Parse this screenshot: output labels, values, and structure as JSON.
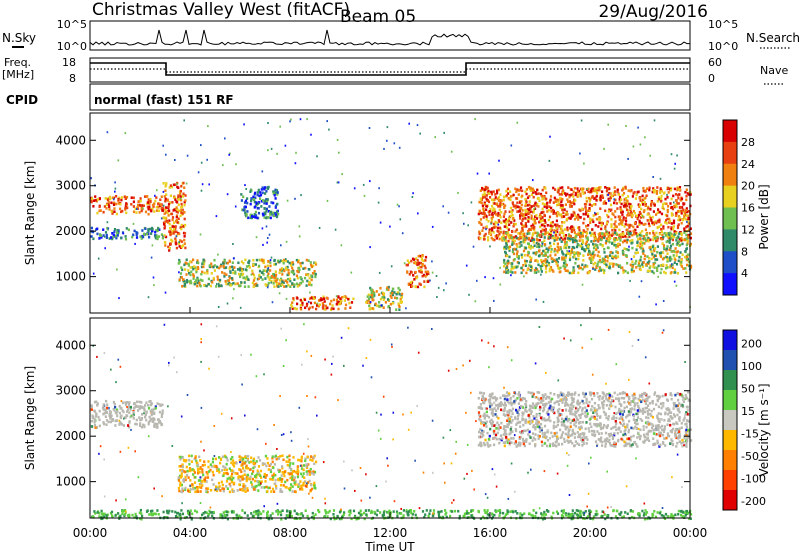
{
  "header": {
    "station": "Christmas Valley West (fitACF)",
    "beam": "Beam 05",
    "date": "29/Aug/2016"
  },
  "top_panels": {
    "nsky_label": "N.Sky",
    "nsky_ticks": [
      "10^5",
      "10^0"
    ],
    "nsearch_label": "N.Search",
    "freq_label": "Freq.",
    "freq_unit": "[MHz]",
    "freq_ticks": [
      "18",
      "8"
    ],
    "nave_label": "Nave",
    "nave_ticks": [
      "60",
      "0"
    ],
    "cpid_label": "CPID",
    "cpid_value": "normal (fast) 151 RF"
  },
  "colors": {
    "power": [
      "#1010ff",
      "#1f4fc8",
      "#2f8a6a",
      "#6fbf50",
      "#e8d020",
      "#f08010",
      "#e84010",
      "#d80000"
    ],
    "velocity": [
      "#e00000",
      "#ff4000",
      "#ff8000",
      "#ffb800",
      "#c8c8c0",
      "#60d040",
      "#309050",
      "#2050b0",
      "#1010e0"
    ],
    "ground": "#b8b8b0"
  },
  "chart_data": [
    {
      "type": "heatmap",
      "name": "power",
      "ylabel": "Slant Range [km]",
      "xlabel": "",
      "yticks": [
        "1000",
        "2000",
        "3000",
        "4000"
      ],
      "ylim": [
        200,
        4600
      ],
      "xlim_hours": [
        0,
        24
      ],
      "colorbar_title": "Power [dB]",
      "colorbar_ticks": [
        "4",
        "8",
        "12",
        "16",
        "20",
        "24",
        "28"
      ],
      "features": [
        {
          "t": [
            0,
            2.9
          ],
          "r": [
            2400,
            2800
          ],
          "level": "high"
        },
        {
          "t": [
            0,
            2.9
          ],
          "r": [
            1850,
            2100
          ],
          "level": "low"
        },
        {
          "t": [
            2.9,
            3.8
          ],
          "r": [
            1600,
            3100
          ],
          "level": "high"
        },
        {
          "t": [
            3.5,
            9
          ],
          "r": [
            800,
            1400
          ],
          "level": "mid"
        },
        {
          "t": [
            6,
            7.5
          ],
          "r": [
            2300,
            3000
          ],
          "level": "low"
        },
        {
          "t": [
            8,
            10.5
          ],
          "r": [
            300,
            600
          ],
          "level": "high"
        },
        {
          "t": [
            11,
            12.5
          ],
          "r": [
            300,
            800
          ],
          "level": "mid"
        },
        {
          "t": [
            12.6,
            13.5
          ],
          "r": [
            800,
            1500
          ],
          "level": "high"
        },
        {
          "t": [
            15.5,
            24
          ],
          "r": [
            1800,
            3000
          ],
          "level": "high"
        },
        {
          "t": [
            16.5,
            24
          ],
          "r": [
            1100,
            2000
          ],
          "level": "mid"
        }
      ]
    },
    {
      "type": "heatmap",
      "name": "velocity",
      "ylabel": "Slant Range [km]",
      "xlabel": "Time UT",
      "yticks": [
        "1000",
        "2000",
        "3000",
        "4000"
      ],
      "ylim": [
        200,
        4600
      ],
      "xlim_hours": [
        0,
        24
      ],
      "xticks": [
        "00:00",
        "04:00",
        "08:00",
        "12:00",
        "16:00",
        "20:00",
        "00:00"
      ],
      "colorbar_title": "Velocity [m s⁻¹]",
      "colorbar_ticks": [
        "200",
        "100",
        "50",
        "15",
        "-15",
        "-50",
        "-100",
        "-200"
      ],
      "features": [
        {
          "t": [
            0,
            2.9
          ],
          "r": [
            2200,
            2800
          ],
          "level": "ground"
        },
        {
          "t": [
            3.5,
            9
          ],
          "r": [
            800,
            1600
          ],
          "level": "mixed"
        },
        {
          "t": [
            0,
            24
          ],
          "r": [
            200,
            400
          ],
          "level": "positive"
        },
        {
          "t": [
            15.5,
            24
          ],
          "r": [
            1800,
            3000
          ],
          "level": "ground"
        }
      ]
    }
  ]
}
